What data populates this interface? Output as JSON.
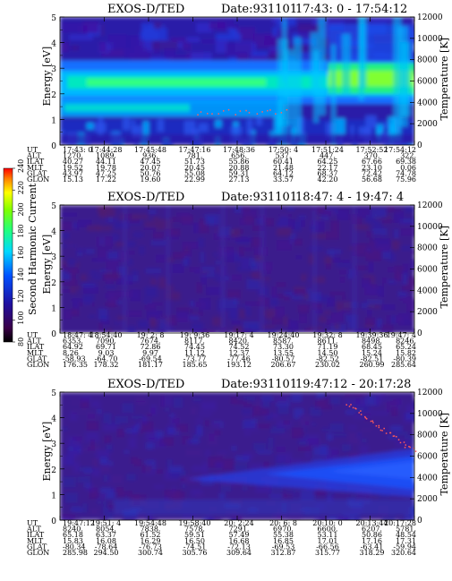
{
  "colorbar": {
    "label": "Second Harmonic Current",
    "ticks": [
      "80",
      "100",
      "120",
      "140",
      "160",
      "180",
      "200",
      "220",
      "240"
    ],
    "range": [
      80,
      240
    ]
  },
  "chart_data": [
    {
      "type": "heatmap",
      "title": "EXOS-D/TED",
      "date_label": "Date:931101",
      "time_range": "17:43: 0 - 17:54:12",
      "ylabel": "Energy [eV]",
      "y2label": "Temperature [K]",
      "yticks": [
        "0",
        "1",
        "2",
        "3",
        "4",
        "5"
      ],
      "y2ticks": [
        "0",
        "2000",
        "4000",
        "6000",
        "8000",
        "10000",
        "12000"
      ],
      "ylim": [
        0,
        5
      ],
      "y2lim": [
        0,
        12000
      ],
      "table": {
        "labels": [
          "UT",
          "ALT",
          "ILAT",
          "MLT",
          "GLAT",
          "GLON"
        ],
        "columns": [
          [
            "17:43: 0",
            "1270.",
            "40.27",
            "19.52",
            "43.97",
            "15.13"
          ],
          [
            "17:44:28",
            "1089.",
            "44.11",
            "19.78",
            "47.25",
            "17.22"
          ],
          [
            "17:45:48",
            "936.",
            "47.45",
            "20.07",
            "50.76",
            "19.60"
          ],
          [
            "17:47:16",
            "781.",
            "51.73",
            "20.45",
            "55.08",
            "22.99"
          ],
          [
            "17:48:36",
            "656.",
            "55.86",
            "20.88",
            "59.31",
            "27.13"
          ],
          [
            "17:50: 4",
            "537.",
            "60.41",
            "21.48",
            "64.12",
            "33.57"
          ],
          [
            "17:51:24",
            "447.",
            "64.25",
            "22.17",
            "68.37",
            "42.20"
          ],
          [
            "17:52:52",
            "370.",
            "67.66",
            "23.10",
            "72.42",
            "56.68"
          ],
          [
            "17:54:12",
            "322.",
            "69.38",
            "0.06",
            "74.78",
            "75.96"
          ]
        ]
      }
    },
    {
      "type": "heatmap",
      "title": "EXOS-D/TED",
      "date_label": "Date:931101",
      "time_range": "18:47: 4 - 19:47: 4",
      "ylabel": "Energy [eV]",
      "y2label": "Temperature [K]",
      "yticks": [
        "0",
        "1",
        "2",
        "3",
        "4",
        "5"
      ],
      "y2ticks": [
        "0",
        "2000",
        "4000",
        "6000",
        "8000",
        "10000",
        "12000"
      ],
      "ylim": [
        0,
        5
      ],
      "y2lim": [
        0,
        12000
      ],
      "table": {
        "labels": [
          "UT",
          "ALT",
          "ILAT",
          "MLT",
          "GLAT",
          "GLON"
        ],
        "columns": [
          [
            "18:47: 4",
            "6353.",
            "64.92",
            "8.26",
            "-58.93",
            "176.35"
          ],
          [
            "18:54:40",
            "7090.",
            "69.71",
            "9.03",
            "-64.70",
            "178.32"
          ],
          [
            "19: 2: 8",
            "7674.",
            "72.86",
            "9.97",
            "-69.54",
            "181.17"
          ],
          [
            "19: 9:36",
            "8117.",
            "74.45",
            "11.12",
            "-73.77",
            "185.65"
          ],
          [
            "19:17: 4",
            "8420.",
            "74.52",
            "12.37",
            "-77.46",
            "193.12"
          ],
          [
            "19:24:40",
            "8587.",
            "73.30",
            "13.55",
            "-80.57",
            "206.67"
          ],
          [
            "19:32: 8",
            "8611.",
            "71.19",
            "14.50",
            "-82.52",
            "230.02"
          ],
          [
            "19:39:36",
            "8498.",
            "68.45",
            "15.24",
            "-82.51",
            "260.99"
          ],
          [
            "19:47: 4",
            "8246.",
            "65.24",
            "15.82",
            "-80.39",
            "285.64"
          ]
        ]
      }
    },
    {
      "type": "heatmap",
      "title": "EXOS-D/TED",
      "date_label": "Date:931101",
      "time_range": "19:47:12 - 20:17:28",
      "ylabel": "Energy [eV]",
      "y2label": "Temperature [K]",
      "yticks": [
        "0",
        "1",
        "2",
        "3",
        "4",
        "5"
      ],
      "y2ticks": [
        "0",
        "2000",
        "4000",
        "6000",
        "8000",
        "10000",
        "12000"
      ],
      "ylim": [
        0,
        5
      ],
      "y2lim": [
        0,
        12000
      ],
      "table": {
        "labels": [
          "UT",
          "ALT",
          "ILAT",
          "MLT",
          "GLAT",
          "GLON"
        ],
        "columns": [
          [
            "19:47:12",
            "8240.",
            "65.18",
            "15.83",
            "-80.34",
            "285.98"
          ],
          [
            "19:51: 4",
            "8054.",
            "63.37",
            "16.08",
            "-78.64",
            "294.50"
          ],
          [
            "19:54:48",
            "7838.",
            "61.52",
            "16.29",
            "-76.73",
            "300.74"
          ],
          [
            "19:58:40",
            "7578.",
            "59.51",
            "16.50",
            "-74.51",
            "305.76"
          ],
          [
            "20: 2:24",
            "7291.",
            "57.49",
            "16.68",
            "-72.13",
            "309.64"
          ],
          [
            "20: 6: 8",
            "6970.",
            "55.38",
            "16.85",
            "-69.53",
            "312.87"
          ],
          [
            "20:10: 0",
            "6600.",
            "53.11",
            "17.01",
            "-66.56",
            "315.77"
          ],
          [
            "20:13:44",
            "6207.",
            "50.86",
            "17.16",
            "-63.41",
            "318.29"
          ],
          [
            "20:17:28",
            "5781.",
            "48.54",
            "17.31",
            "-59.94",
            "320.64"
          ]
        ]
      }
    }
  ]
}
